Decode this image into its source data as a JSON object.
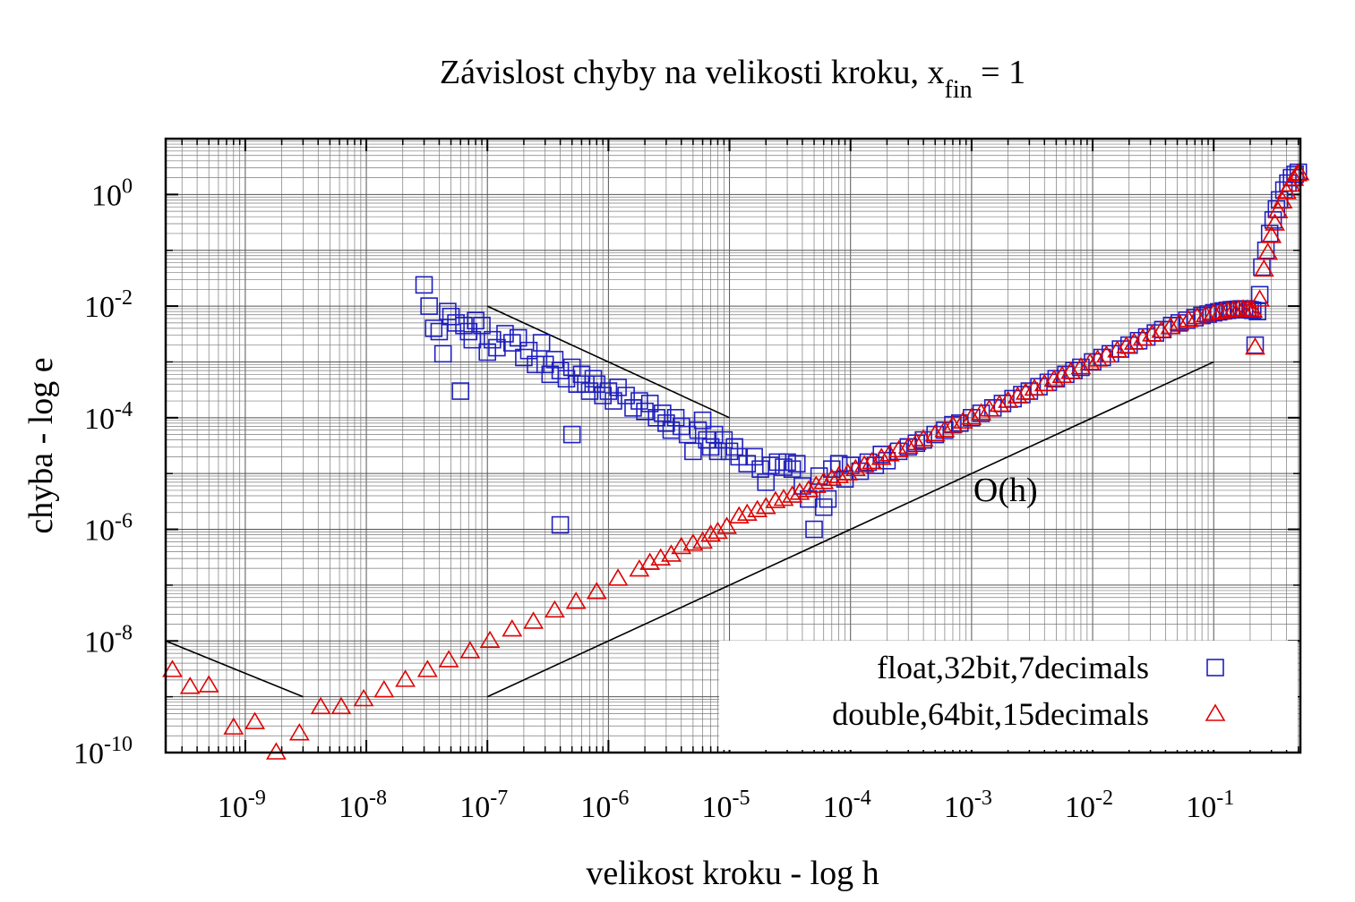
{
  "chart_data": {
    "type": "scatter",
    "title": "Závislost chyby na velikosti kroku, x",
    "title_subscript": "fin",
    "title_suffix": " = 1",
    "xlabel": "velikost kroku - log h",
    "ylabel": "chyba - log e",
    "xscale": "log",
    "yscale": "log",
    "xlim": [
      2.2e-10,
      0.52
    ],
    "ylim": [
      1e-10,
      10
    ],
    "grid": true,
    "legend_position": "bottom-right",
    "x_ticks": [
      {
        "base": "10",
        "exp": "-9",
        "value": 1e-09
      },
      {
        "base": "10",
        "exp": "-8",
        "value": 1e-08
      },
      {
        "base": "10",
        "exp": "-7",
        "value": 1e-07
      },
      {
        "base": "10",
        "exp": "-6",
        "value": 1e-06
      },
      {
        "base": "10",
        "exp": "-5",
        "value": 1e-05
      },
      {
        "base": "10",
        "exp": "-4",
        "value": 0.0001
      },
      {
        "base": "10",
        "exp": "-3",
        "value": 0.001
      },
      {
        "base": "10",
        "exp": "-2",
        "value": 0.01
      },
      {
        "base": "10",
        "exp": "-1",
        "value": 0.1
      }
    ],
    "y_ticks": [
      {
        "base": "10",
        "exp": "0",
        "value": 1
      },
      {
        "base": "10",
        "exp": "-2",
        "value": 0.01
      },
      {
        "base": "10",
        "exp": "-4",
        "value": 0.0001
      },
      {
        "base": "10",
        "exp": "-6",
        "value": 1e-06
      },
      {
        "base": "10",
        "exp": "-8",
        "value": 1e-08
      },
      {
        "base": "10",
        "exp": "-10",
        "value": 1e-10
      }
    ],
    "series": [
      {
        "name": "float,32bit,7decimals",
        "marker": "square",
        "color": "#1f1fbf",
        "points": [
          [
            3e-08,
            0.024
          ],
          [
            3.3e-08,
            0.01
          ],
          [
            3.6e-08,
            0.004
          ],
          [
            4e-08,
            0.0035
          ],
          [
            4.3e-08,
            0.0014
          ],
          [
            4.7e-08,
            0.008
          ],
          [
            5e-08,
            0.0065
          ],
          [
            5.5e-08,
            0.005
          ],
          [
            6e-08,
            0.0003
          ],
          [
            6.4e-08,
            0.0045
          ],
          [
            7e-08,
            0.0035
          ],
          [
            7.5e-08,
            0.0025
          ],
          [
            8e-08,
            0.0055
          ],
          [
            9e-08,
            0.0045
          ],
          [
            1e-07,
            0.0015
          ],
          [
            1.1e-07,
            0.0025
          ],
          [
            1.2e-07,
            0.0018
          ],
          [
            1.4e-07,
            0.0032
          ],
          [
            1.6e-07,
            0.0022
          ],
          [
            1.8e-07,
            0.0027
          ],
          [
            2e-07,
            0.0012
          ],
          [
            2.2e-07,
            0.0016
          ],
          [
            2.5e-07,
            0.0009
          ],
          [
            2.8e-07,
            0.0022
          ],
          [
            3e-07,
            0.0009
          ],
          [
            3.3e-07,
            0.0006
          ],
          [
            3.6e-07,
            0.0011
          ],
          [
            4e-07,
            0.0007
          ],
          [
            4e-07,
            1.2e-06
          ],
          [
            4.5e-07,
            0.0005
          ],
          [
            5e-07,
            0.0008
          ],
          [
            5e-07,
            5e-05
          ],
          [
            5.5e-07,
            0.0004
          ],
          [
            6e-07,
            0.0006
          ],
          [
            6.5e-07,
            0.0004
          ],
          [
            7e-07,
            0.0003
          ],
          [
            7.5e-07,
            0.0005
          ],
          [
            8e-07,
            0.0004
          ],
          [
            9e-07,
            0.00025
          ],
          [
            1e-06,
            0.0003
          ],
          [
            1.1e-06,
            0.0002
          ],
          [
            1.2e-06,
            0.00035
          ],
          [
            1.4e-06,
            0.00025
          ],
          [
            1.6e-06,
            0.00015
          ],
          [
            1.8e-06,
            0.0002
          ],
          [
            2e-06,
            0.00013
          ],
          [
            2.2e-06,
            0.00018
          ],
          [
            2.5e-06,
            0.0001
          ],
          [
            2.8e-06,
            0.00012
          ],
          [
            3e-06,
            8e-05
          ],
          [
            3.3e-06,
            6e-05
          ],
          [
            3.6e-06,
            0.0001
          ],
          [
            4e-06,
            7e-05
          ],
          [
            4.5e-06,
            5e-05
          ],
          [
            5e-06,
            2.5e-05
          ],
          [
            5.5e-06,
            6e-05
          ],
          [
            6e-06,
            9e-05
          ],
          [
            6.5e-06,
            4e-05
          ],
          [
            7e-06,
            3e-05
          ],
          [
            7.5e-06,
            5e-05
          ],
          [
            8e-06,
            2.5e-05
          ],
          [
            9e-06,
            4e-05
          ],
          [
            1e-05,
            2.5e-05
          ],
          [
            1.1e-05,
            3e-05
          ],
          [
            1.2e-05,
            2e-05
          ],
          [
            1.4e-05,
            1.5e-05
          ],
          [
            1.6e-05,
            2e-05
          ],
          [
            1.8e-05,
            1.2e-05
          ],
          [
            2e-05,
            7e-06
          ],
          [
            2.2e-05,
            1.4e-05
          ],
          [
            2.5e-05,
            1.6e-05
          ],
          [
            2.8e-05,
            1.3e-05
          ],
          [
            3e-05,
            1.6e-05
          ],
          [
            3.3e-05,
            1.2e-05
          ],
          [
            3.6e-05,
            1.5e-05
          ],
          [
            4e-05,
            6e-06
          ],
          [
            4.5e-05,
            3.5e-06
          ],
          [
            5e-05,
            1e-06
          ],
          [
            5.5e-05,
            9e-06
          ],
          [
            6e-05,
            2.5e-06
          ],
          [
            6.5e-05,
            3.5e-06
          ],
          [
            7e-05,
            1.2e-05
          ],
          [
            8e-05,
            1.5e-05
          ],
          [
            9e-05,
            8e-06
          ],
          [
            0.0001,
            1.4e-05
          ],
          [
            0.00012,
            1.1e-05
          ],
          [
            0.00014,
            1.6e-05
          ],
          [
            0.00016,
            1.4e-05
          ],
          [
            0.00018,
            2.2e-05
          ],
          [
            0.0002,
            1.7e-05
          ],
          [
            0.00025,
            2.5e-05
          ],
          [
            0.0003,
            3e-05
          ],
          [
            0.00035,
            3.5e-05
          ],
          [
            0.0004,
            4e-05
          ],
          [
            0.0005,
            5e-05
          ],
          [
            0.0006,
            6e-05
          ],
          [
            0.0007,
            7.5e-05
          ],
          [
            0.0008,
            8e-05
          ],
          [
            0.001,
            0.0001
          ],
          [
            0.0012,
            0.00012
          ],
          [
            0.0015,
            0.00015
          ],
          [
            0.0018,
            0.00018
          ],
          [
            0.0022,
            0.00022
          ],
          [
            0.0026,
            0.00026
          ],
          [
            0.003,
            0.0003
          ],
          [
            0.0036,
            0.00036
          ],
          [
            0.0043,
            0.00043
          ],
          [
            0.005,
            0.0005
          ],
          [
            0.006,
            0.0006
          ],
          [
            0.007,
            0.0007
          ],
          [
            0.008,
            0.0008
          ],
          [
            0.01,
            0.001
          ],
          [
            0.012,
            0.0012
          ],
          [
            0.014,
            0.0014
          ],
          [
            0.017,
            0.0017
          ],
          [
            0.02,
            0.002
          ],
          [
            0.024,
            0.0024
          ],
          [
            0.028,
            0.0028
          ],
          [
            0.033,
            0.0033
          ],
          [
            0.038,
            0.0038
          ],
          [
            0.045,
            0.0045
          ],
          [
            0.052,
            0.005
          ],
          [
            0.06,
            0.0056
          ],
          [
            0.07,
            0.0062
          ],
          [
            0.08,
            0.0068
          ],
          [
            0.09,
            0.0072
          ],
          [
            0.1,
            0.0076
          ],
          [
            0.11,
            0.0079
          ],
          [
            0.12,
            0.0082
          ],
          [
            0.13,
            0.0084
          ],
          [
            0.14,
            0.0086
          ],
          [
            0.15,
            0.0087
          ],
          [
            0.16,
            0.0088
          ],
          [
            0.17,
            0.0089
          ],
          [
            0.18,
            0.0089
          ],
          [
            0.19,
            0.0088
          ],
          [
            0.2,
            0.0086
          ],
          [
            0.21,
            0.0084
          ],
          [
            0.22,
            0.002
          ],
          [
            0.23,
            0.008
          ],
          [
            0.24,
            0.016
          ],
          [
            0.25,
            0.05
          ],
          [
            0.27,
            0.1
          ],
          [
            0.29,
            0.2
          ],
          [
            0.31,
            0.35
          ],
          [
            0.33,
            0.55
          ],
          [
            0.35,
            0.8
          ],
          [
            0.38,
            1.2
          ],
          [
            0.41,
            1.6
          ],
          [
            0.44,
            2.0
          ],
          [
            0.47,
            2.3
          ],
          [
            0.5,
            2.5
          ]
        ]
      },
      {
        "name": "double,64bit,15decimals",
        "marker": "triangle",
        "color": "#e00000",
        "points": [
          [
            2.5e-10,
            3e-09
          ],
          [
            3.5e-10,
            1.5e-09
          ],
          [
            5e-10,
            1.6e-09
          ],
          [
            8e-10,
            2.8e-10
          ],
          [
            1.2e-09,
            3.5e-10
          ],
          [
            1.8e-09,
            1e-10
          ],
          [
            2.8e-09,
            2.2e-10
          ],
          [
            4.2e-09,
            6.5e-10
          ],
          [
            6.2e-09,
            6.5e-10
          ],
          [
            9.5e-09,
            9e-10
          ],
          [
            1.4e-08,
            1.3e-09
          ],
          [
            2.1e-08,
            2e-09
          ],
          [
            3.2e-08,
            3e-09
          ],
          [
            4.8e-08,
            4.5e-09
          ],
          [
            7.2e-08,
            6.5e-09
          ],
          [
            1.05e-07,
            1e-08
          ],
          [
            1.6e-07,
            1.6e-08
          ],
          [
            2.4e-07,
            2.2e-08
          ],
          [
            3.6e-07,
            3.5e-08
          ],
          [
            5.4e-07,
            5e-08
          ],
          [
            8e-07,
            7.5e-08
          ],
          [
            1.2e-06,
            1.3e-07
          ],
          [
            1.8e-06,
            1.9e-07
          ],
          [
            2.2e-06,
            2.5e-07
          ],
          [
            2.7e-06,
            3e-07
          ],
          [
            3.3e-06,
            3.5e-07
          ],
          [
            4e-06,
            4.8e-07
          ],
          [
            5e-06,
            5.5e-07
          ],
          [
            6e-06,
            6e-07
          ],
          [
            7e-06,
            8e-07
          ],
          [
            8e-06,
            9e-07
          ],
          [
            9.5e-06,
            1.1e-06
          ],
          [
            1.2e-05,
            1.7e-06
          ],
          [
            1.4e-05,
            1.9e-06
          ],
          [
            1.7e-05,
            2.2e-06
          ],
          [
            2e-05,
            2.5e-06
          ],
          [
            2.4e-05,
            3.2e-06
          ],
          [
            2.8e-05,
            3.5e-06
          ],
          [
            3.3e-05,
            4e-06
          ],
          [
            3.8e-05,
            4.5e-06
          ],
          [
            4.5e-05,
            5e-06
          ],
          [
            5.2e-05,
            6e-06
          ],
          [
            6e-05,
            7e-06
          ],
          [
            7e-05,
            8e-06
          ],
          [
            8e-05,
            9e-06
          ],
          [
            9.5e-05,
            1e-05
          ],
          [
            0.00011,
            1.2e-05
          ],
          [
            0.00013,
            1.4e-05
          ],
          [
            0.00015,
            1.6e-05
          ],
          [
            0.00018,
            1.9e-05
          ],
          [
            0.00021,
            2.2e-05
          ],
          [
            0.00025,
            2.6e-05
          ],
          [
            0.0003,
            3e-05
          ],
          [
            0.00035,
            3.5e-05
          ],
          [
            0.0004,
            4.1e-05
          ],
          [
            0.0005,
            5e-05
          ],
          [
            0.0006,
            6e-05
          ],
          [
            0.0007,
            7.2e-05
          ],
          [
            0.00085,
            8.5e-05
          ],
          [
            0.001,
            0.0001
          ],
          [
            0.0012,
            0.00012
          ],
          [
            0.0014,
            0.00014
          ],
          [
            0.0017,
            0.00017
          ],
          [
            0.002,
            0.0002
          ],
          [
            0.0024,
            0.00024
          ],
          [
            0.0028,
            0.00028
          ],
          [
            0.0033,
            0.00033
          ],
          [
            0.004,
            0.0004
          ],
          [
            0.0048,
            0.00048
          ],
          [
            0.0056,
            0.00056
          ],
          [
            0.0066,
            0.00066
          ],
          [
            0.008,
            0.0008
          ],
          [
            0.0095,
            0.00095
          ],
          [
            0.011,
            0.0011
          ],
          [
            0.013,
            0.0013
          ],
          [
            0.016,
            0.0016
          ],
          [
            0.019,
            0.0019
          ],
          [
            0.022,
            0.0022
          ],
          [
            0.026,
            0.0026
          ],
          [
            0.031,
            0.0031
          ],
          [
            0.037,
            0.0036
          ],
          [
            0.044,
            0.0042
          ],
          [
            0.052,
            0.0049
          ],
          [
            0.062,
            0.0056
          ],
          [
            0.073,
            0.0063
          ],
          [
            0.086,
            0.0069
          ],
          [
            0.1,
            0.0075
          ],
          [
            0.115,
            0.0079
          ],
          [
            0.13,
            0.0082
          ],
          [
            0.145,
            0.0085
          ],
          [
            0.16,
            0.0086
          ],
          [
            0.175,
            0.0087
          ],
          [
            0.19,
            0.0087
          ],
          [
            0.2,
            0.0085
          ],
          [
            0.21,
            0.0083
          ],
          [
            0.22,
            0.0018
          ],
          [
            0.24,
            0.013
          ],
          [
            0.26,
            0.045
          ],
          [
            0.28,
            0.09
          ],
          [
            0.3,
            0.18
          ],
          [
            0.32,
            0.3
          ],
          [
            0.34,
            0.5
          ],
          [
            0.37,
            0.75
          ],
          [
            0.4,
            1.1
          ],
          [
            0.43,
            1.5
          ],
          [
            0.46,
            1.9
          ],
          [
            0.49,
            2.3
          ],
          [
            0.51,
            2.4
          ]
        ]
      }
    ],
    "reference_lines": [
      {
        "kind": "slope-1",
        "points": [
          [
            2.2e-10,
            1e-08
          ],
          [
            3e-09,
            1e-09
          ]
        ]
      },
      {
        "kind": "slope-1",
        "points": [
          [
            1e-07,
            0.01
          ],
          [
            1e-05,
            0.0001
          ]
        ]
      },
      {
        "kind": "O(h)",
        "points": [
          [
            1e-07,
            1e-09
          ],
          [
            0.1,
            0.001
          ]
        ]
      }
    ],
    "annotations": [
      {
        "text": "O(h)",
        "x": 0.001,
        "y": 5e-06
      }
    ]
  }
}
